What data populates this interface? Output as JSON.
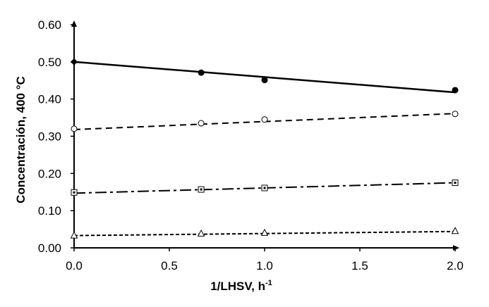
{
  "chart_data": {
    "type": "scatter",
    "title": "",
    "xlabel": "1/LHSV, h",
    "xlabel_superscript": "-1",
    "ylabel": "Concentración, 400 °C",
    "xlim": [
      0,
      2
    ],
    "ylim": [
      0,
      0.6
    ],
    "xticks": [
      0,
      0.5,
      1,
      1.5,
      2
    ],
    "xtick_labels": [
      "0.0",
      "0.5",
      "1.0",
      "1.5",
      "2.0"
    ],
    "yticks": [
      0,
      0.1,
      0.2,
      0.3,
      0.4,
      0.5,
      0.6
    ],
    "ytick_labels": [
      "0.00",
      "0.10",
      "0.20",
      "0.30",
      "0.40",
      "0.50",
      "0.60"
    ],
    "grid": false,
    "legend": "none",
    "series": [
      {
        "marker": "filled-circle",
        "line": "solid",
        "color": "#000000",
        "x": [
          0,
          0.667,
          1.0,
          2.0
        ],
        "y": [
          0.5,
          0.471,
          0.451,
          0.424
        ],
        "fit": [
          [
            0,
            0.5
          ],
          [
            2.0,
            0.418
          ]
        ]
      },
      {
        "marker": "open-circle",
        "line": "dashed",
        "color": "#000000",
        "x": [
          0,
          0.667,
          1.0,
          2.0
        ],
        "y": [
          0.32,
          0.335,
          0.345,
          0.36
        ],
        "fit": [
          [
            0,
            0.318
          ],
          [
            2.0,
            0.361
          ]
        ]
      },
      {
        "marker": "open-square-dot",
        "line": "dash-dot",
        "color": "#000000",
        "x": [
          0,
          0.667,
          1.0,
          2.0
        ],
        "y": [
          0.149,
          0.157,
          0.161,
          0.175
        ],
        "fit": [
          [
            0,
            0.147
          ],
          [
            2.0,
            0.175
          ]
        ]
      },
      {
        "marker": "open-triangle",
        "line": "short-dash",
        "color": "#000000",
        "x": [
          0,
          0.667,
          1.0,
          2.0
        ],
        "y": [
          0.033,
          0.038,
          0.04,
          0.045
        ],
        "fit": [
          [
            0,
            0.033
          ],
          [
            2.0,
            0.044
          ]
        ]
      }
    ]
  }
}
